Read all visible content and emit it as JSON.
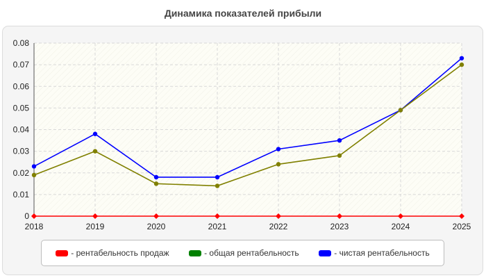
{
  "chart_data": {
    "type": "line",
    "title": "Динамика показателей прибыли",
    "xlabel": "",
    "ylabel": "",
    "x": [
      "2018",
      "2019",
      "2020",
      "2021",
      "2022",
      "2023",
      "2024",
      "2025"
    ],
    "y_ticks": [
      "0",
      "0.01",
      "0.02",
      "0.03",
      "0.04",
      "0.05",
      "0.06",
      "0.07",
      "0.08"
    ],
    "ylim": [
      0,
      0.08
    ],
    "grid": true,
    "legend_position": "bottom",
    "series": [
      {
        "name": "- рентабельность продаж",
        "color": "#ff0000",
        "values": [
          0,
          0,
          0,
          0,
          0,
          0,
          0,
          0
        ]
      },
      {
        "name": "- общая рентабельность",
        "color": "#808000",
        "legend_color": "#008000",
        "values": [
          0.019,
          0.03,
          0.015,
          0.014,
          0.024,
          0.028,
          0.049,
          0.07
        ]
      },
      {
        "name": "- чистая рентабельность",
        "color": "#0000ff",
        "values": [
          0.023,
          0.038,
          0.018,
          0.018,
          0.031,
          0.035,
          0.049,
          0.073
        ]
      }
    ]
  }
}
